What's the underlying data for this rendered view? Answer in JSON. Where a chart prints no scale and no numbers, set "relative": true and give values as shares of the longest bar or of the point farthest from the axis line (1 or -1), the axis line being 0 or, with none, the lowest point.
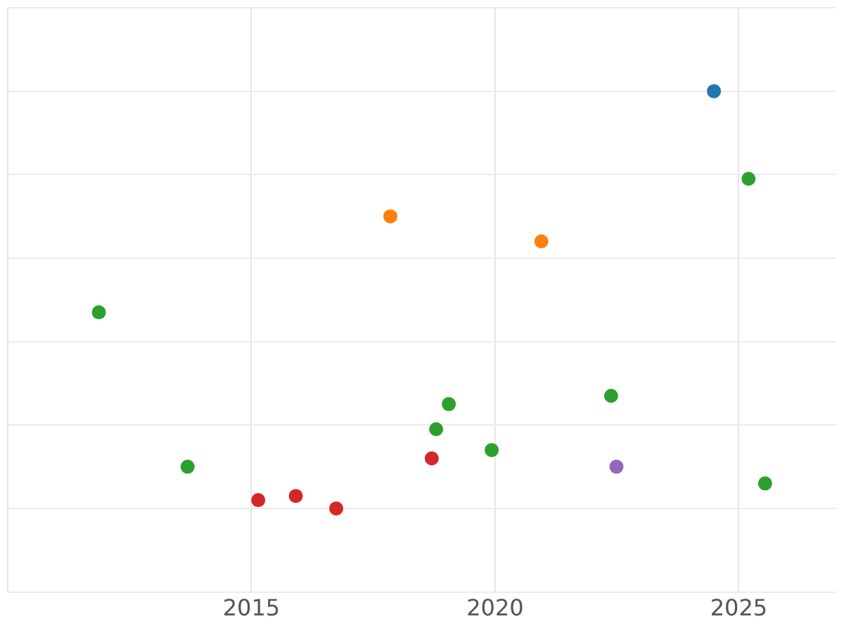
{
  "chart_data": {
    "type": "scatter",
    "relative": true,
    "grid": true,
    "marker": "circle",
    "legend": false,
    "xlim": [
      2010,
      2027
    ],
    "xticks": [
      {
        "value": 2010,
        "label": null
      },
      2015,
      2020,
      2025
    ],
    "series": [
      {
        "color": "#1f77b4",
        "x": [
          2024.49
        ],
        "values": [
          1
        ]
      },
      {
        "color": "#2ca02c",
        "x": [
          2025.2,
          2011.87,
          2019.05,
          2022.38,
          2018.79,
          2013.69,
          2019.93,
          2025.54
        ],
        "values": [
          0.79,
          0.47,
          0.25,
          0.27,
          0.19,
          0.1,
          0.14,
          0.06
        ]
      },
      {
        "color": "#ff7f0e",
        "x": [
          2017.85,
          2020.95
        ],
        "values": [
          0.7,
          0.64
        ]
      },
      {
        "color": "#d62728",
        "x": [
          2018.7,
          2015.14,
          2015.91,
          2016.74
        ],
        "values": [
          0.12,
          0.02,
          0.03,
          0
        ]
      },
      {
        "color": "#9467bd",
        "x": [
          2022.49
        ],
        "values": [
          0.1
        ]
      }
    ]
  }
}
